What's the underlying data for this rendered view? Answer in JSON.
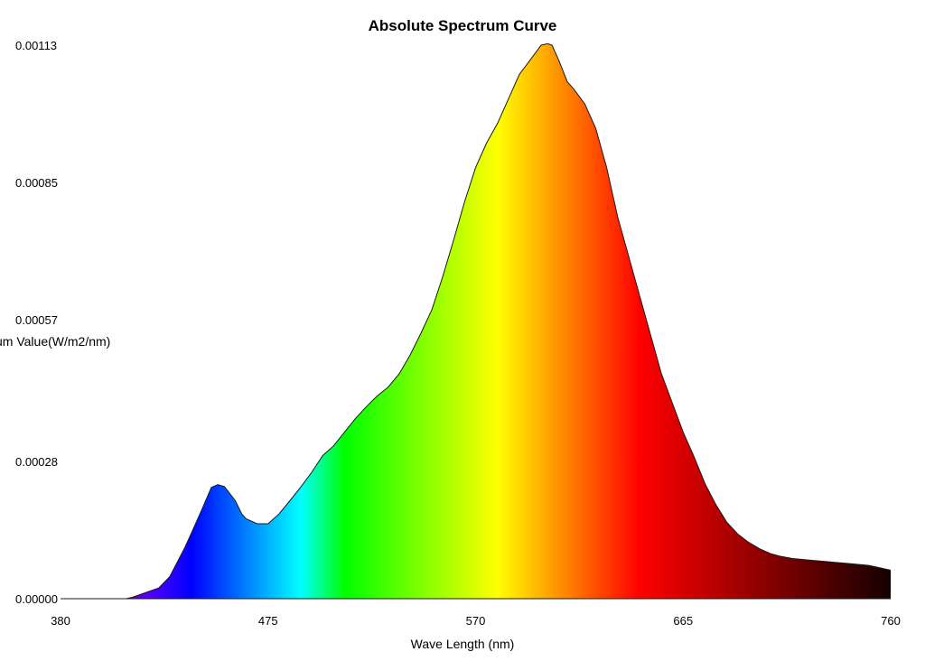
{
  "chart_data": {
    "type": "area",
    "title": "Absolute Spectrum Curve",
    "xlabel": "Wave Length (nm)",
    "ylabel": "um Value(W/m2/nm)",
    "xlim": [
      380,
      760
    ],
    "ylim": [
      0,
      0.00113
    ],
    "x_ticks": [
      "380",
      "475",
      "570",
      "665",
      "760"
    ],
    "y_ticks": [
      "0.00000",
      "0.00028",
      "0.00057",
      "0.00085",
      "0.00113"
    ],
    "grid": false,
    "legend": "none",
    "fill": "wavelength color gradient",
    "series": [
      {
        "x": [
          380,
          410,
          413,
          420,
          425,
          430,
          437,
          440,
          445,
          449,
          452,
          455,
          460,
          463,
          465,
          470,
          475,
          480,
          485,
          490,
          495,
          500,
          505,
          510,
          515,
          520,
          525,
          530,
          535,
          540,
          545,
          550,
          555,
          560,
          565,
          570,
          575,
          580,
          585,
          590,
          595,
          600,
          603,
          605,
          608,
          612,
          615,
          620,
          625,
          630,
          635,
          640,
          645,
          650,
          655,
          660,
          665,
          670,
          675,
          680,
          685,
          690,
          695,
          700,
          705,
          710,
          715,
          720,
          725,
          730,
          735,
          740,
          745,
          750,
          755,
          760
        ],
        "y": [
          0.0,
          0.0,
          3e-06,
          1.4e-05,
          2.2e-05,
          4.5e-05,
          0.000105,
          0.000135,
          0.000185,
          0.000227,
          0.000233,
          0.000229,
          0.0002,
          0.000173,
          0.000163,
          0.000153,
          0.000153,
          0.000173,
          0.0002,
          0.000228,
          0.000258,
          0.000292,
          0.000312,
          0.00034,
          0.000368,
          0.000392,
          0.000414,
          0.000432,
          0.000459,
          0.000497,
          0.000542,
          0.00059,
          0.000658,
          0.000733,
          0.000811,
          0.00088,
          0.00093,
          0.00097,
          0.00102,
          0.00107,
          0.0011,
          0.00113,
          0.001133,
          0.00113,
          0.0011,
          0.001055,
          0.00104,
          0.00101,
          0.00096,
          0.00088,
          0.00078,
          0.0007,
          0.00062,
          0.00054,
          0.00046,
          0.0004,
          0.00034,
          0.00029,
          0.000235,
          0.000192,
          0.000156,
          0.000132,
          0.000115,
          0.000102,
          9.2e-05,
          8.6e-05,
          8.2e-05,
          8e-05,
          7.8e-05,
          7.6e-05,
          7.4e-05,
          7.2e-05,
          7e-05,
          6.8e-05,
          6.3e-05,
          5.8e-05
        ]
      }
    ]
  }
}
